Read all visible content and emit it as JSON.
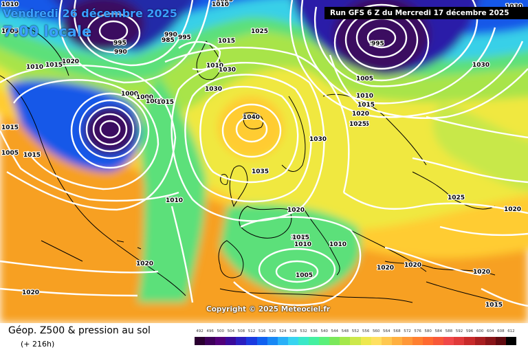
{
  "header": {
    "date_title": "Vendredi 26 décembre 2025",
    "time_title": "7:00 locale",
    "run_info": "Run GFS 6 Z du Mercredi 17 décembre 2025"
  },
  "copyright": "Copyright © 2025 Meteociel.fr",
  "footer": {
    "field_title": "Géop. Z500 & pression au sol",
    "lead_time": "(+ 216h)"
  },
  "legend": {
    "labels": [
      "492",
      "496",
      "500",
      "504",
      "508",
      "512",
      "516",
      "520",
      "524",
      "528",
      "532",
      "536",
      "540",
      "544",
      "548",
      "552",
      "556",
      "560",
      "564",
      "568",
      "572",
      "576",
      "580",
      "584",
      "588",
      "592",
      "596",
      "600",
      "604",
      "608",
      "612"
    ],
    "colors": [
      "#2a0030",
      "#3e005a",
      "#52007a",
      "#3a0a9a",
      "#2a1ec0",
      "#1a3ae0",
      "#1060f0",
      "#1888f5",
      "#2ab0f8",
      "#38d4f0",
      "#3ae8c8",
      "#44f0a0",
      "#5af07a",
      "#7ae85a",
      "#a4e84a",
      "#cce84a",
      "#eee84e",
      "#ffe060",
      "#ffc850",
      "#ffb040",
      "#ff9838",
      "#ff8030",
      "#ff6a30",
      "#f85838",
      "#f04848",
      "#e03a3a",
      "#c82a2a",
      "#a81e20",
      "#881418",
      "#600a10",
      "#000000"
    ]
  },
  "isobar_labels": [
    "1010",
    "1005",
    "1015",
    "1020",
    "1010",
    "1015",
    "995",
    "990",
    "990",
    "985",
    "995",
    "1015",
    "1015",
    "1000",
    "1020",
    "995",
    "1030",
    "1025",
    "1005",
    "1010",
    "1015",
    "1020",
    "1025",
    "1030",
    "1000",
    "1005",
    "1015",
    "1010",
    "1040",
    "1030",
    "1030",
    "1035",
    "1030",
    "995",
    "1010",
    "1010",
    "1005",
    "1015",
    "1020",
    "1025",
    "1020",
    "1015",
    "1010",
    "1010",
    "1005",
    "1020",
    "1020",
    "1020",
    "1020",
    "1020",
    "1015",
    "1025"
  ],
  "map_colors": {
    "ocean_warm": "#f7a020",
    "subtropical": "#ffcc33",
    "mid": "#f0e840",
    "green": "#8ce04a",
    "cyan": "#38d0e8",
    "blue": "#1858e8",
    "dark_blue": "#202aa8",
    "purple": "#3a0a60",
    "isobar": "#ffffff",
    "coast": "#000000"
  }
}
